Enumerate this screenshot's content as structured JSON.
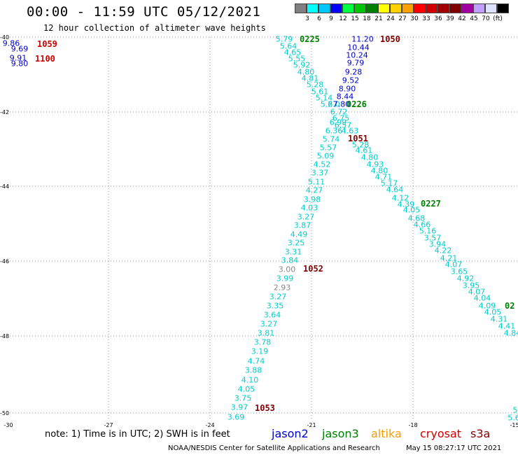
{
  "header": {
    "title": "00:00 - 11:59 UTC 05/12/2021",
    "subtitle": "12 hour collection of altimeter wave heights"
  },
  "scale": {
    "labels": [
      "3",
      "6",
      "9",
      "12",
      "15",
      "18",
      "21",
      "24",
      "27",
      "30",
      "33",
      "36",
      "39",
      "42",
      "45",
      "70",
      "(ft)"
    ],
    "colors": [
      "#808080",
      "#00ffff",
      "#00c8ff",
      "#0000ff",
      "#00ff40",
      "#00c800",
      "#008000",
      "#ffff00",
      "#ffd200",
      "#ffa000",
      "#ff0000",
      "#d00000",
      "#a00000",
      "#800000",
      "#a000a0",
      "#c0a0ff",
      "#e0e0ff",
      "#000000"
    ]
  },
  "axes": {
    "y_labels": [
      "-40",
      "-42",
      "-44",
      "-46",
      "-48",
      "-50"
    ],
    "x_labels": [
      "-30",
      "-27",
      "-24",
      "-21",
      "-18",
      "-15"
    ]
  },
  "passes": [
    {
      "text": "0225",
      "color": "#008000"
    },
    {
      "text": "1050",
      "color": "#800000"
    },
    {
      "text": "0226",
      "color": "#008000"
    },
    {
      "text": "1051",
      "color": "#800000"
    },
    {
      "text": "0227",
      "color": "#008000"
    },
    {
      "text": "1052",
      "color": "#800000"
    },
    {
      "text": "1053",
      "color": "#800000"
    },
    {
      "text": "1059",
      "color": "#cc0000"
    },
    {
      "text": "1100",
      "color": "#cc0000"
    },
    {
      "text": "02",
      "color": "#008000"
    }
  ],
  "swh": [
    {
      "text": "9.86",
      "color": "#0000cc"
    },
    {
      "text": "9.69",
      "color": "#0000cc"
    },
    {
      "text": "9.91",
      "color": "#0000cc"
    },
    {
      "text": "9.80",
      "color": "#0000cc"
    },
    {
      "text": "5.79",
      "color": "#00cccc"
    },
    {
      "text": "5.64",
      "color": "#00cccc"
    },
    {
      "text": "4.65",
      "color": "#00cccc"
    },
    {
      "text": "5.55",
      "color": "#00cccc"
    },
    {
      "text": "5.92",
      "color": "#00cccc"
    },
    {
      "text": "4.80",
      "color": "#00cccc"
    },
    {
      "text": "4.81",
      "color": "#00cccc"
    },
    {
      "text": "5.28",
      "color": "#00cccc"
    },
    {
      "text": "5.61",
      "color": "#00cccc"
    },
    {
      "text": "5.14",
      "color": "#00cccc"
    },
    {
      "text": "5.27",
      "color": "#00cccc"
    },
    {
      "text": "6.0",
      "color": "#00cccc"
    },
    {
      "text": "6.72",
      "color": "#00cccc"
    },
    {
      "text": "6.75",
      "color": "#00cccc"
    },
    {
      "text": "6.99",
      "color": "#00cccc"
    },
    {
      "text": "6.57",
      "color": "#00cccc"
    },
    {
      "text": "6.36",
      "color": "#00cccc"
    },
    {
      "text": "4.63",
      "color": "#00cccc"
    },
    {
      "text": "11.20",
      "color": "#0000cc"
    },
    {
      "text": "10.44",
      "color": "#0000cc"
    },
    {
      "text": "10.24",
      "color": "#0000cc"
    },
    {
      "text": "9.79",
      "color": "#0000cc"
    },
    {
      "text": "9.28",
      "color": "#0000cc"
    },
    {
      "text": "9.52",
      "color": "#0000cc"
    },
    {
      "text": "8.90",
      "color": "#0000cc"
    },
    {
      "text": "8.44",
      "color": "#0000cc"
    },
    {
      "text": "7.80",
      "color": "#0000cc"
    },
    {
      "text": "5.74",
      "color": "#00cccc"
    },
    {
      "text": "5.28",
      "color": "#00cccc"
    },
    {
      "text": "5.57",
      "color": "#00cccc"
    },
    {
      "text": "4.61",
      "color": "#00cccc"
    },
    {
      "text": "5.09",
      "color": "#00cccc"
    },
    {
      "text": "4.80",
      "color": "#00cccc"
    },
    {
      "text": "4.52",
      "color": "#00cccc"
    },
    {
      "text": "4.93",
      "color": "#00cccc"
    },
    {
      "text": "3.37",
      "color": "#00cccc"
    },
    {
      "text": "4.80",
      "color": "#00cccc"
    },
    {
      "text": "4.71",
      "color": "#00cccc"
    },
    {
      "text": "5.11",
      "color": "#00cccc"
    },
    {
      "text": "5.17",
      "color": "#00cccc"
    },
    {
      "text": "4.27",
      "color": "#00cccc"
    },
    {
      "text": "4.64",
      "color": "#00cccc"
    },
    {
      "text": "4.12",
      "color": "#00cccc"
    },
    {
      "text": "3.98",
      "color": "#00cccc"
    },
    {
      "text": "4.39",
      "color": "#00cccc"
    },
    {
      "text": "4.03",
      "color": "#00cccc"
    },
    {
      "text": "4.05",
      "color": "#00cccc"
    },
    {
      "text": "3.27",
      "color": "#00cccc"
    },
    {
      "text": "4.68",
      "color": "#00cccc"
    },
    {
      "text": "3.87",
      "color": "#00cccc"
    },
    {
      "text": "4.66",
      "color": "#00cccc"
    },
    {
      "text": "4.49",
      "color": "#00cccc"
    },
    {
      "text": "5.16",
      "color": "#00cccc"
    },
    {
      "text": "3.25",
      "color": "#00cccc"
    },
    {
      "text": "3.57",
      "color": "#00cccc"
    },
    {
      "text": "3.31",
      "color": "#00cccc"
    },
    {
      "text": "3.94",
      "color": "#00cccc"
    },
    {
      "text": "3.84",
      "color": "#00cccc"
    },
    {
      "text": "4.22",
      "color": "#00cccc"
    },
    {
      "text": "4.21",
      "color": "#00cccc"
    },
    {
      "text": "3.00",
      "color": "#888888"
    },
    {
      "text": "4.07",
      "color": "#00cccc"
    },
    {
      "text": "3.65",
      "color": "#00cccc"
    },
    {
      "text": "3.99",
      "color": "#00cccc"
    },
    {
      "text": "4.92",
      "color": "#00cccc"
    },
    {
      "text": "2.93",
      "color": "#888888"
    },
    {
      "text": "3.95",
      "color": "#00cccc"
    },
    {
      "text": "4.07",
      "color": "#00cccc"
    },
    {
      "text": "3.27",
      "color": "#00cccc"
    },
    {
      "text": "4.04",
      "color": "#00cccc"
    },
    {
      "text": "3.35",
      "color": "#00cccc"
    },
    {
      "text": "4.09",
      "color": "#00cccc"
    },
    {
      "text": "3.64",
      "color": "#00cccc"
    },
    {
      "text": "4.05",
      "color": "#00cccc"
    },
    {
      "text": "3.27",
      "color": "#00cccc"
    },
    {
      "text": "4.31",
      "color": "#00cccc"
    },
    {
      "text": "3.81",
      "color": "#00cccc"
    },
    {
      "text": "4.41",
      "color": "#00cccc"
    },
    {
      "text": "4.84",
      "color": "#00cccc"
    },
    {
      "text": "3.78",
      "color": "#00cccc"
    },
    {
      "text": "3.19",
      "color": "#00cccc"
    },
    {
      "text": "4.74",
      "color": "#00cccc"
    },
    {
      "text": "3.88",
      "color": "#00cccc"
    },
    {
      "text": "4.10",
      "color": "#00cccc"
    },
    {
      "text": "4.05",
      "color": "#00cccc"
    },
    {
      "text": "3.75",
      "color": "#00cccc"
    },
    {
      "text": "3.97",
      "color": "#00cccc"
    },
    {
      "text": "3.69",
      "color": "#00cccc"
    },
    {
      "text": "5",
      "color": "#00cccc"
    },
    {
      "text": "5.6",
      "color": "#00cccc"
    }
  ],
  "footer": {
    "note": "note: 1) Time is in UTC; 2) SWH is in feet",
    "legend": [
      {
        "name": "jason2",
        "color": "#0000cc"
      },
      {
        "name": "jason3",
        "color": "#008000"
      },
      {
        "name": "altika",
        "color": "#ff9900"
      },
      {
        "name": "cryosat",
        "color": "#cc0000"
      },
      {
        "name": "s3a",
        "color": "#800000"
      }
    ],
    "credit": "NOAA/NESDIS Center for Satellite Applications and Research",
    "timestamp": "May 15 08:27:17 UTC 2021"
  }
}
